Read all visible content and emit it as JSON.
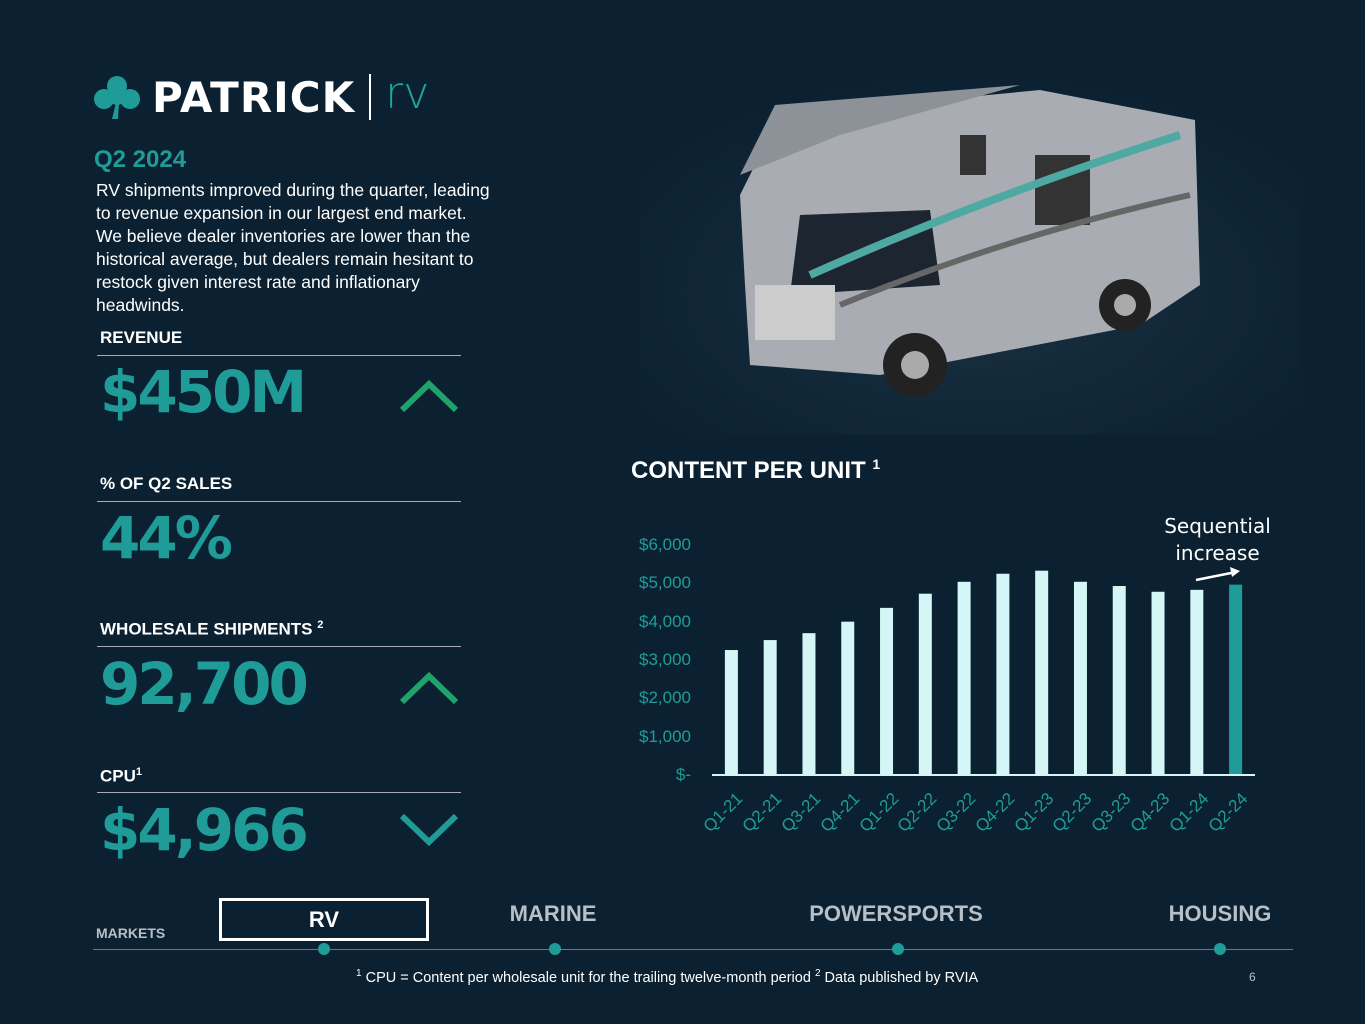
{
  "logo": {
    "name": "PATRICK",
    "segment": "rv",
    "icon": "shamrock-icon"
  },
  "period": "Q2 2024",
  "description": "RV shipments improved during the quarter, leading to revenue expansion in our largest end market. We believe dealer inventories are lower than the historical average, but dealers remain hesitant to restock given interest rate and inflationary headwinds.",
  "kpis": [
    {
      "label": "REVENUE",
      "sup": "",
      "value": "$450M",
      "trend": "up"
    },
    {
      "label": "% OF Q2 SALES",
      "sup": "",
      "value": "44%",
      "trend": ""
    },
    {
      "label": "WHOLESALE SHIPMENTS",
      "sup": "2",
      "value": "92,700",
      "trend": "up"
    },
    {
      "label": "CPU",
      "sup": "1",
      "value": "$4,966",
      "trend": "down"
    }
  ],
  "colors": {
    "background": "#0b2131",
    "accent": "#1f9c98",
    "bar": "#d4f6f6",
    "highlight_bar": "#1f9c98",
    "trend_up": "#1fa36a",
    "trend_down": "#1f9c98"
  },
  "chart_data": {
    "type": "bar",
    "title": "CONTENT PER UNIT",
    "title_sup": "1",
    "categories": [
      "Q1-21",
      "Q2-21",
      "Q3-21",
      "Q4-21",
      "Q1-22",
      "Q2-22",
      "Q3-22",
      "Q4-22",
      "Q1-23",
      "Q2-23",
      "Q3-23",
      "Q4-23",
      "Q1-24",
      "Q2-24"
    ],
    "values": [
      3260,
      3520,
      3700,
      4000,
      4360,
      4730,
      5040,
      5250,
      5330,
      5040,
      4930,
      4780,
      4830,
      4966
    ],
    "highlight": "Q2-24",
    "ylim": [
      0,
      6000
    ],
    "yticks": [
      "$-",
      "$1,000",
      "$2,000",
      "$3,000",
      "$4,000",
      "$5,000",
      "$6,000"
    ],
    "grid": false,
    "annotation": "Sequential increase"
  },
  "markets": {
    "label": "MARKETS",
    "tabs": [
      "RV",
      "MARINE",
      "POWERSPORTS",
      "HOUSING"
    ],
    "active": "RV"
  },
  "footnote": {
    "n1": "1",
    "t1": "CPU = Content per wholesale unit for the trailing twelve-month period",
    "n2": "2",
    "t2": "Data published by RVIA"
  },
  "page_number": "6"
}
